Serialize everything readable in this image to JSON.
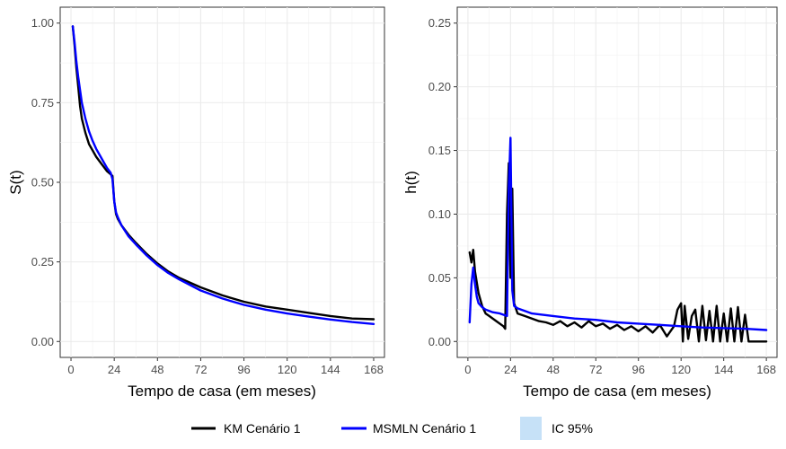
{
  "chart_data": [
    {
      "type": "line",
      "title": "",
      "xlabel": "Tempo de casa (em meses)",
      "ylabel": "S(t)",
      "xlim": [
        -6,
        174
      ],
      "ylim": [
        -0.05,
        1.05
      ],
      "xticks": [
        0,
        24,
        48,
        72,
        96,
        120,
        144,
        168
      ],
      "yticks": [
        0.0,
        0.25,
        0.5,
        0.75,
        1.0
      ],
      "ytick_labels": [
        "0.00",
        "0.25",
        "0.50",
        "0.75",
        "1.00"
      ],
      "grid": true,
      "series": [
        {
          "name": "KM Cenário 1",
          "color": "#000000",
          "x": [
            1,
            2,
            3,
            4,
            5,
            6,
            8,
            10,
            12,
            14,
            16,
            18,
            20,
            22,
            23,
            24,
            25,
            26,
            28,
            32,
            36,
            42,
            48,
            54,
            60,
            72,
            84,
            96,
            108,
            120,
            132,
            144,
            156,
            168
          ],
          "y": [
            0.99,
            0.93,
            0.86,
            0.8,
            0.74,
            0.7,
            0.655,
            0.62,
            0.6,
            0.58,
            0.565,
            0.55,
            0.535,
            0.525,
            0.52,
            0.44,
            0.4,
            0.385,
            0.365,
            0.335,
            0.31,
            0.275,
            0.245,
            0.22,
            0.2,
            0.17,
            0.145,
            0.125,
            0.11,
            0.1,
            0.09,
            0.08,
            0.072,
            0.07
          ]
        },
        {
          "name": "MSMLN Cenário 1",
          "color": "#0000ff",
          "x": [
            1,
            2,
            3,
            4,
            5,
            6,
            8,
            10,
            12,
            14,
            16,
            18,
            20,
            22,
            23,
            24,
            25,
            26,
            28,
            32,
            36,
            42,
            48,
            54,
            60,
            72,
            84,
            96,
            108,
            120,
            132,
            144,
            156,
            168
          ],
          "y": [
            0.99,
            0.94,
            0.88,
            0.83,
            0.79,
            0.75,
            0.7,
            0.66,
            0.63,
            0.605,
            0.585,
            0.565,
            0.545,
            0.53,
            0.51,
            0.44,
            0.405,
            0.39,
            0.365,
            0.33,
            0.305,
            0.27,
            0.24,
            0.215,
            0.195,
            0.16,
            0.135,
            0.115,
            0.1,
            0.088,
            0.078,
            0.069,
            0.061,
            0.055
          ]
        }
      ]
    },
    {
      "type": "line",
      "title": "",
      "xlabel": "Tempo de casa (em meses)",
      "ylabel": "h(t)",
      "xlim": [
        -6,
        174
      ],
      "ylim": [
        -0.0125,
        0.2625
      ],
      "xticks": [
        0,
        24,
        48,
        72,
        96,
        120,
        144,
        168
      ],
      "yticks": [
        0.0,
        0.05,
        0.1,
        0.15,
        0.2,
        0.25
      ],
      "ytick_labels": [
        "0.00",
        "0.05",
        "0.10",
        "0.15",
        "0.20",
        "0.25"
      ],
      "grid": true,
      "series": [
        {
          "name": "KM Cenário 1",
          "color": "#000000",
          "x": [
            1,
            2,
            3,
            4,
            6,
            8,
            10,
            12,
            16,
            20,
            21,
            22,
            23,
            24,
            25,
            26,
            28,
            32,
            36,
            40,
            44,
            48,
            52,
            56,
            60,
            64,
            68,
            72,
            76,
            80,
            84,
            88,
            92,
            96,
            100,
            104,
            108,
            112,
            116,
            118,
            120,
            121,
            122,
            124,
            126,
            128,
            130,
            132,
            134,
            136,
            138,
            140,
            142,
            144,
            146,
            148,
            150,
            152,
            154,
            156,
            158,
            160,
            162,
            164,
            168
          ],
          "y": [
            0.07,
            0.062,
            0.072,
            0.055,
            0.038,
            0.028,
            0.022,
            0.02,
            0.016,
            0.012,
            0.01,
            0.1,
            0.14,
            0.05,
            0.12,
            0.03,
            0.022,
            0.02,
            0.018,
            0.016,
            0.015,
            0.013,
            0.016,
            0.012,
            0.015,
            0.011,
            0.016,
            0.012,
            0.014,
            0.01,
            0.013,
            0.009,
            0.012,
            0.008,
            0.012,
            0.007,
            0.013,
            0.004,
            0.012,
            0.025,
            0.03,
            0.0,
            0.028,
            0.002,
            0.02,
            0.025,
            0.0,
            0.028,
            0.001,
            0.024,
            0.0,
            0.028,
            0.0,
            0.022,
            0.0,
            0.026,
            0.0,
            0.027,
            0.0,
            0.021,
            0.0,
            0.0,
            0.0,
            0.0,
            0.0
          ]
        },
        {
          "name": "MSMLN Cenário 1",
          "color": "#0000ff",
          "x": [
            1,
            2,
            3,
            4,
            5,
            6,
            8,
            10,
            14,
            18,
            22,
            23,
            24,
            25,
            26,
            28,
            32,
            36,
            48,
            60,
            72,
            84,
            96,
            108,
            120,
            132,
            144,
            156,
            168
          ],
          "y": [
            0.015,
            0.045,
            0.058,
            0.045,
            0.035,
            0.03,
            0.027,
            0.025,
            0.023,
            0.022,
            0.02,
            0.12,
            0.16,
            0.04,
            0.028,
            0.026,
            0.024,
            0.022,
            0.02,
            0.018,
            0.017,
            0.015,
            0.014,
            0.013,
            0.012,
            0.011,
            0.0105,
            0.01,
            0.009
          ]
        }
      ]
    }
  ],
  "legend": {
    "items": [
      {
        "label": "KM Cenário 1",
        "kind": "line",
        "color": "#000000"
      },
      {
        "label": "MSMLN Cenário 1",
        "kind": "line",
        "color": "#0000ff"
      },
      {
        "label": "IC 95%",
        "kind": "fill",
        "color": "#c6e1f7"
      }
    ]
  }
}
